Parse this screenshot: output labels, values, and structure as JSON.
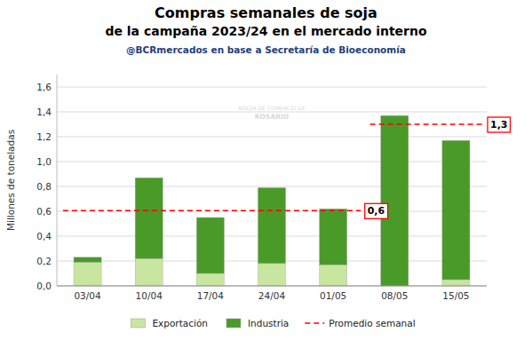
{
  "chart_data": {
    "type": "bar",
    "stacked": true,
    "title": [
      "Compras semanales de soja",
      "de la campaña 2023/24 en el mercado interno"
    ],
    "subtitle": "@BCRmercados en base a Secretaría de Bioeconomía",
    "ylabel": "Millones de toneladas",
    "categories": [
      "03/04",
      "10/04",
      "17/04",
      "24/04",
      "01/05",
      "08/05",
      "15/05"
    ],
    "series": [
      {
        "name": "Exportación",
        "color": "#c8e6a0",
        "values": [
          0.19,
          0.22,
          0.1,
          0.18,
          0.17,
          0.0,
          0.05
        ]
      },
      {
        "name": "Industria",
        "color": "#4a9a28",
        "values": [
          0.04,
          0.65,
          0.45,
          0.61,
          0.45,
          1.37,
          1.12
        ]
      },
      {
        "name": "Promedio semanal",
        "type": "line",
        "line_style": "dashed",
        "color": "red",
        "values": [
          0.605,
          0.605,
          0.605,
          0.605,
          0.605,
          1.3,
          1.3
        ],
        "value_labels": [
          null,
          null,
          null,
          null,
          "0,6",
          null,
          "1,3"
        ]
      }
    ],
    "ylim": [
      0,
      1.7
    ],
    "yticks": [
      {
        "value": 0.0,
        "label": "0,0"
      },
      {
        "value": 0.2,
        "label": "0,2"
      },
      {
        "value": 0.4,
        "label": "0,4"
      },
      {
        "value": 0.6,
        "label": "0,6"
      },
      {
        "value": 0.8,
        "label": "0,8"
      },
      {
        "value": 1.0,
        "label": "1,0"
      },
      {
        "value": 1.2,
        "label": "1,2"
      },
      {
        "value": 1.4,
        "label": "1,4"
      },
      {
        "value": 1.6,
        "label": "1,6"
      }
    ],
    "grid": true,
    "legend": "bottom",
    "annotations": [
      "BOLSA DE COMERCIO DE",
      "ROSARIO"
    ]
  }
}
